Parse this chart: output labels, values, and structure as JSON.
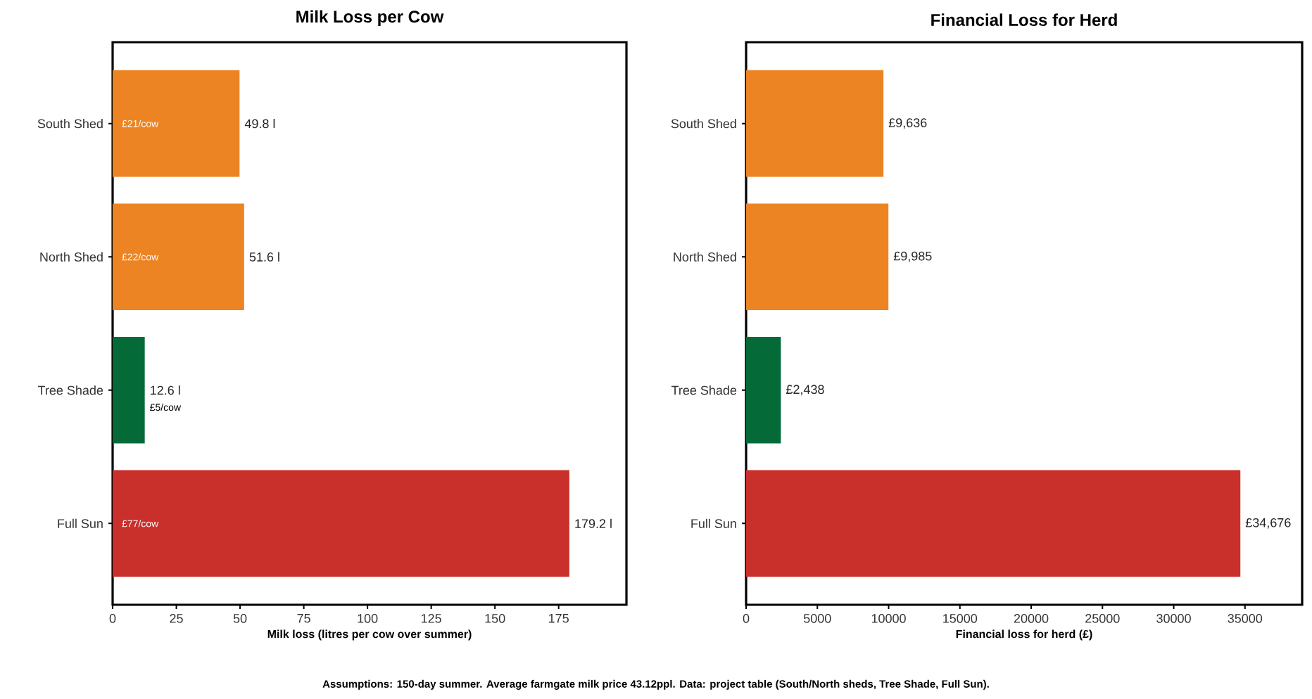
{
  "chart_data": [
    {
      "type": "bar",
      "orientation": "horizontal",
      "title": "Milk Loss per Cow",
      "xlabel": "Milk loss (litres per cow over summer)",
      "categories": [
        "South Shed",
        "North Shed",
        "Tree Shade",
        "Full Sun"
      ],
      "values": [
        49.8,
        51.6,
        12.6,
        179.2
      ],
      "colors": [
        "#ec8423",
        "#ec8423",
        "#046a38",
        "#c9302c"
      ],
      "value_labels": [
        "49.8 l",
        "51.6 l",
        "12.6 l",
        "179.2 l"
      ],
      "annotations": [
        "£21/cow",
        "£22/cow",
        "£5/cow",
        "£77/cow"
      ],
      "xlim": [
        0,
        201.6
      ],
      "xticks": [
        0,
        25,
        50,
        75,
        100,
        125,
        150,
        175
      ]
    },
    {
      "type": "bar",
      "orientation": "horizontal",
      "title": "Financial Loss for Herd",
      "xlabel": "Financial loss for herd (£)",
      "categories": [
        "South Shed",
        "North Shed",
        "Tree Shade",
        "Full Sun"
      ],
      "values": [
        9636,
        9985,
        2438,
        34676
      ],
      "colors": [
        "#ec8423",
        "#ec8423",
        "#046a38",
        "#c9302c"
      ],
      "value_labels": [
        "£9,636",
        "£9,985",
        "£2,438",
        "£34,676"
      ],
      "annotations": [
        "Assumptions: 150-day summer. Average farmgate milk price 43.12ppl. Data: project table (South/North sheds, Tree Shade, Full Sun)."
      ],
      "xlim": [
        0,
        39010
      ],
      "xticks": [
        0,
        5000,
        10000,
        15000,
        20000,
        25000,
        30000,
        35000
      ]
    }
  ]
}
